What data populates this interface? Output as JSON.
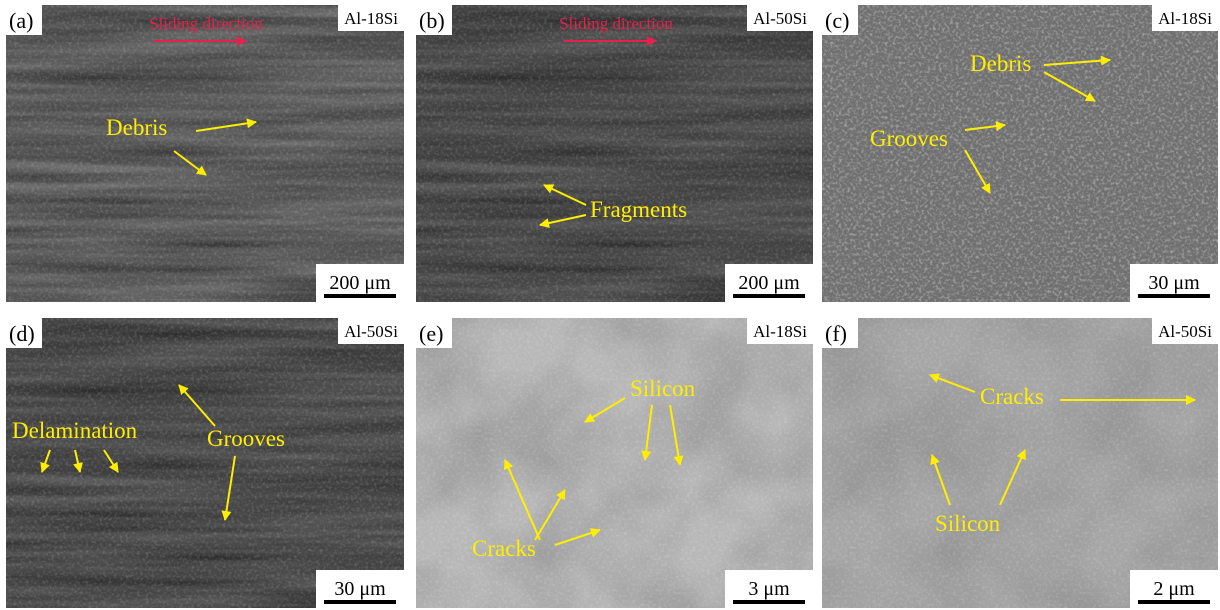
{
  "panels": [
    {
      "label": "(a)",
      "alloy": "Al-18Si",
      "scale": "200 μm",
      "direction": "Sliding direction",
      "annotations": [
        "Debris"
      ]
    },
    {
      "label": "(b)",
      "alloy": "Al-50Si",
      "scale": "200 μm",
      "direction": "Sliding direction",
      "annotations": [
        "Fragments"
      ]
    },
    {
      "label": "(c)",
      "alloy": "Al-18Si",
      "scale": "30 μm",
      "annotations": [
        "Debris",
        "Grooves"
      ]
    },
    {
      "label": "(d)",
      "alloy": "Al-50Si",
      "scale": "30 μm",
      "annotations": [
        "Delamination",
        "Grooves"
      ]
    },
    {
      "label": "(e)",
      "alloy": "Al-18Si",
      "scale": "3 μm",
      "annotations": [
        "Silicon",
        "Cracks"
      ]
    },
    {
      "label": "(f)",
      "alloy": "Al-50Si",
      "scale": "2 μm",
      "annotations": [
        "Cracks",
        "Silicon"
      ]
    }
  ]
}
